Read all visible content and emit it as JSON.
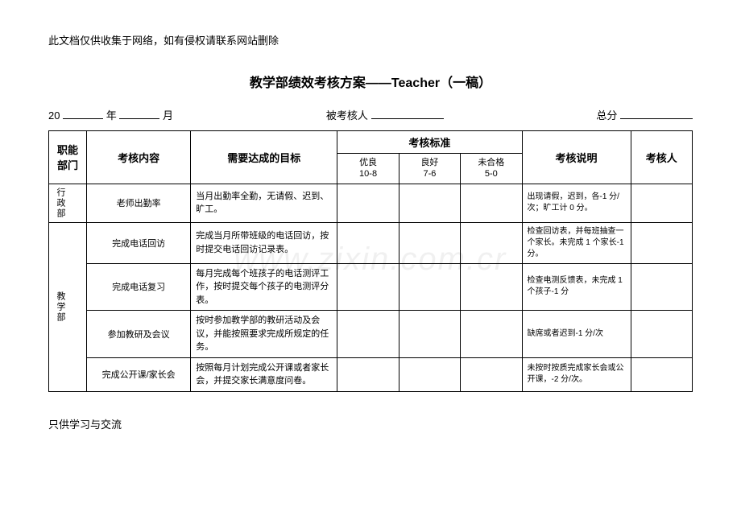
{
  "header_note": "此文档仅供收集于网络，如有侵权请联系网站删除",
  "title": "教学部绩效考核方案——Teacher（一稿）",
  "meta": {
    "year_prefix": "20",
    "year_label": "年",
    "month_label": "月",
    "assessee_label": "被考核人",
    "total_label": "总分"
  },
  "table": {
    "headers": {
      "dept": "职能部门",
      "content": "考核内容",
      "target": "需要达成的目标",
      "standard": "考核标准",
      "note": "考核说明",
      "reviewer": "考核人"
    },
    "sub_headers": {
      "excellent_label": "优良",
      "excellent_range": "10-8",
      "good_label": "良好",
      "good_range": "7-6",
      "fail_label": "未合格",
      "fail_range": "5-0"
    },
    "sections": [
      {
        "dept": "行政部",
        "rows": [
          {
            "content": "老师出勤率",
            "target": "当月出勤率全勤，无请假、迟到、旷工。",
            "note": "出现请假，迟到，各-1 分/次；旷工计 0 分。"
          }
        ]
      },
      {
        "dept": "教学部",
        "rows": [
          {
            "content": "完成电话回访",
            "target": "完成当月所带班级的电话回访，按时提交电话回访记录表。",
            "note": "检查回访表，并每班抽查一个家长。未完成 1 个家长-1 分。"
          },
          {
            "content": "完成电话复习",
            "target": "每月完成每个班孩子的电话测评工作，按时提交每个孩子的电测评分表。",
            "note": "检查电测反馈表，未完成 1 个孩子-1 分"
          },
          {
            "content": "参加教研及会议",
            "target": "按时参加教学部的教研活动及会议，并能按照要求完成所规定的任务。",
            "note": "缺席或者迟到-1 分/次"
          },
          {
            "content": "完成公开课/家长会",
            "target": "按照每月计划完成公开课或者家长会，并提交家长满意度问卷。",
            "note": "未按时按质完成家长会或公开课，-2 分/次。"
          }
        ]
      }
    ]
  },
  "footer_note": "只供学习与交流",
  "watermark": "www.zixin.com.cr"
}
